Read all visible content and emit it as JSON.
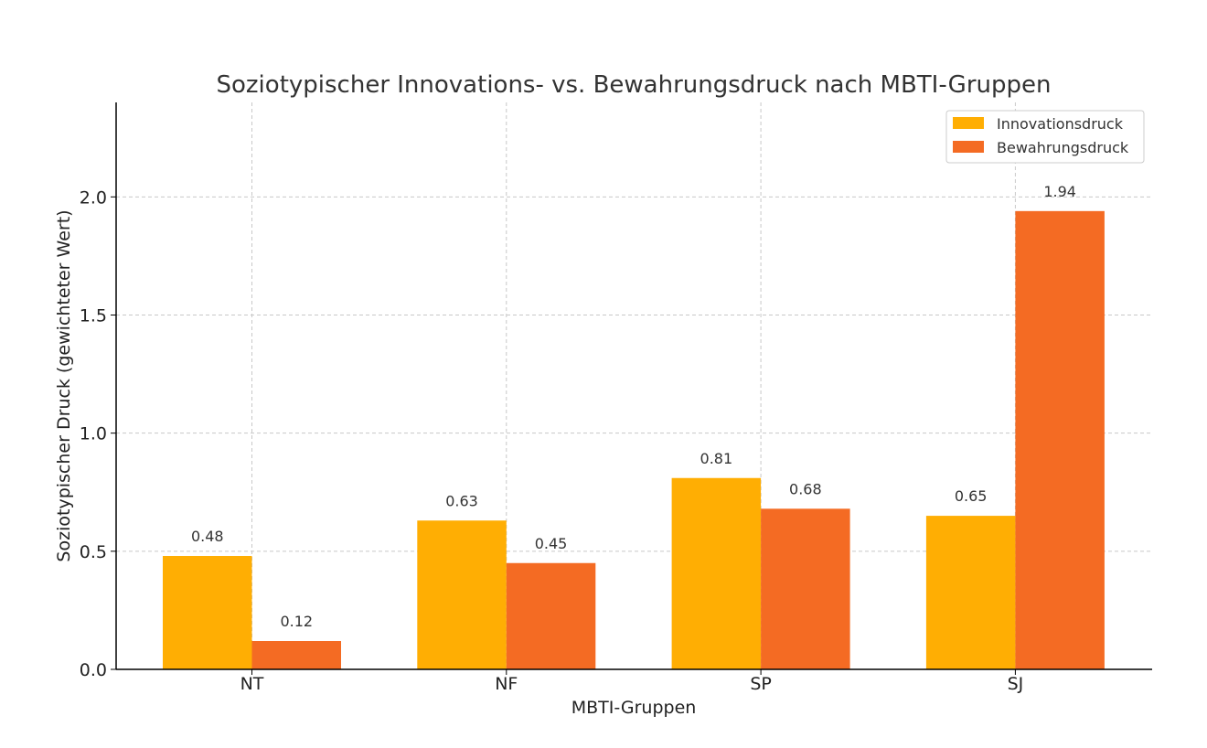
{
  "chart_data": {
    "type": "bar",
    "title": "Soziotypischer Innovations- vs. Bewahrungsdruck nach MBTI-Gruppen",
    "xlabel": "MBTI-Gruppen",
    "ylabel": "Soziotypischer Druck (gewichteter Wert)",
    "categories": [
      "NT",
      "NF",
      "SP",
      "SJ"
    ],
    "series": [
      {
        "name": "Innovationsdruck",
        "color": "#FFAE03",
        "values": [
          0.48,
          0.63,
          0.81,
          0.65
        ],
        "labels": [
          "0.48",
          "0.63",
          "0.81",
          "0.65"
        ]
      },
      {
        "name": "Bewahrungsdruck",
        "color": "#F46B23",
        "values": [
          0.12,
          0.45,
          0.68,
          1.94
        ],
        "labels": [
          "0.12",
          "0.45",
          "0.68",
          "1.94"
        ]
      }
    ],
    "ylim": [
      0,
      2.4
    ],
    "yticks": [
      0.0,
      0.5,
      1.0,
      1.5,
      2.0
    ],
    "ytick_labels": [
      "0.0",
      "0.5",
      "1.0",
      "1.5",
      "2.0"
    ],
    "grid": true,
    "legend_position": "top-right"
  }
}
